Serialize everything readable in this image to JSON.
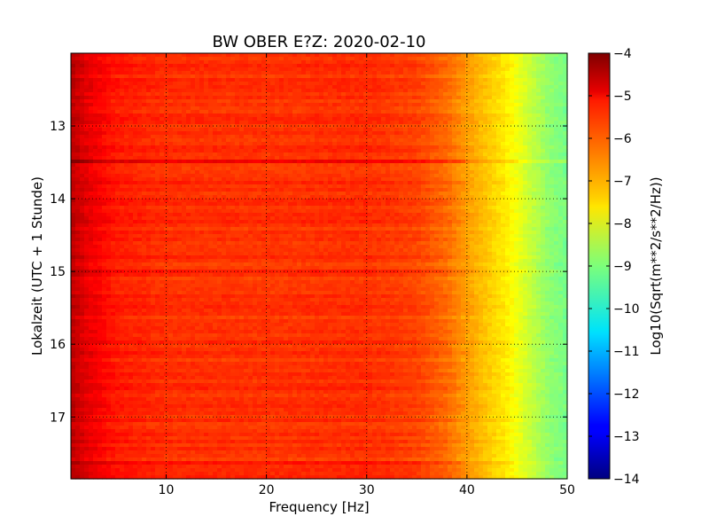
{
  "chart_data": {
    "type": "heatmap",
    "title": "BW OBER E?Z: 2020-02-10",
    "xlabel": "Frequency [Hz]",
    "ylabel": "Lokalzeit (UTC + 1 Stunde)",
    "xlim": [
      0.5,
      50
    ],
    "ylim": [
      12.0,
      17.85
    ],
    "y_inverted": true,
    "grid": true,
    "x_ticks": [
      10,
      20,
      30,
      40,
      50
    ],
    "y_ticks": [
      13,
      14,
      15,
      16,
      17
    ],
    "colorbar": {
      "label": "Log10(Sqrt(m**2/s**2/Hz))",
      "colormap": "jet",
      "vmin": -14,
      "vmax": -4,
      "ticks": [
        -4,
        -5,
        -6,
        -7,
        -8,
        -9,
        -10,
        -11,
        -12,
        -13,
        -14
      ]
    },
    "spectrum_profile": {
      "frequency_hz": [
        0.5,
        2,
        5,
        10,
        20,
        30,
        35,
        38,
        40,
        42,
        44,
        46,
        48,
        50
      ],
      "log10_amplitude": [
        -4.6,
        -5.0,
        -5.5,
        -5.7,
        -5.75,
        -5.7,
        -5.9,
        -6.3,
        -6.8,
        -7.2,
        -7.6,
        -8.2,
        -8.8,
        -9.1
      ]
    },
    "notable_bands": [
      {
        "time_h": 13.45,
        "log10_amplitude_offset": 0.5
      },
      {
        "time_h": 14.3,
        "log10_amplitude_offset": 0.3
      },
      {
        "time_h": 14.95,
        "log10_amplitude_offset": 0.35
      },
      {
        "time_h": 17.6,
        "log10_amplitude_offset": 0.4
      }
    ]
  }
}
